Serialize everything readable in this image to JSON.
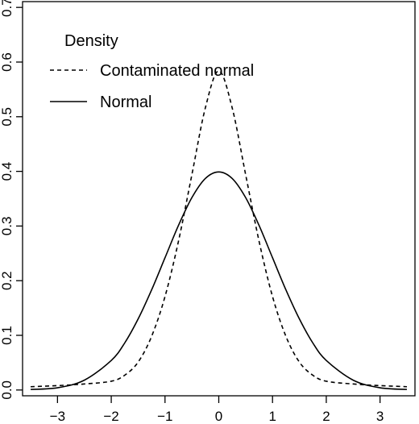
{
  "chart_data": {
    "type": "line",
    "title": "",
    "xlabel": "",
    "ylabel": "",
    "xlim": [
      -3.5,
      3.5
    ],
    "ylim": [
      0.0,
      0.7
    ],
    "x_ticks": [
      -3,
      -2,
      -1,
      0,
      1,
      2,
      3
    ],
    "x_tick_labels": [
      "−3",
      "−2",
      "−1",
      "0",
      "1",
      "2",
      "3"
    ],
    "y_ticks": [
      0.0,
      0.1,
      0.2,
      0.3,
      0.4,
      0.5,
      0.6,
      0.7
    ],
    "y_tick_labels": [
      "0.0",
      "0.1",
      "0.2",
      "0.3",
      "0.4",
      "0.5",
      "0.6",
      "0.7"
    ],
    "grid": false,
    "legend": {
      "title": "Density",
      "placement": "top-left",
      "entries": [
        {
          "label": "Contaminated normal",
          "line_style": "dashed"
        },
        {
          "label": "Normal",
          "line_style": "solid"
        }
      ]
    },
    "series": [
      {
        "name": "Contaminated normal",
        "line_style": "dashed",
        "color": "#000000",
        "x": [
          -3.5,
          -3.0,
          -2.5,
          -2.0,
          -1.75,
          -1.5,
          -1.25,
          -1.0,
          -0.75,
          -0.5,
          -0.25,
          0.0,
          0.25,
          0.5,
          0.75,
          1.0,
          1.25,
          1.5,
          1.75,
          2.0,
          2.5,
          3.0,
          3.5
        ],
        "values": [
          0.006,
          0.008,
          0.011,
          0.016,
          0.027,
          0.051,
          0.098,
          0.171,
          0.272,
          0.394,
          0.516,
          0.584,
          0.516,
          0.394,
          0.272,
          0.171,
          0.098,
          0.051,
          0.027,
          0.016,
          0.011,
          0.008,
          0.006
        ]
      },
      {
        "name": "Normal",
        "line_style": "solid",
        "color": "#000000",
        "x": [
          -3.5,
          -3.0,
          -2.5,
          -2.0,
          -1.75,
          -1.5,
          -1.25,
          -1.0,
          -0.75,
          -0.5,
          -0.25,
          0.0,
          0.25,
          0.5,
          0.75,
          1.0,
          1.25,
          1.5,
          1.75,
          2.0,
          2.5,
          3.0,
          3.5
        ],
        "values": [
          0.001,
          0.004,
          0.018,
          0.054,
          0.086,
          0.13,
          0.183,
          0.242,
          0.301,
          0.352,
          0.387,
          0.399,
          0.387,
          0.352,
          0.301,
          0.242,
          0.183,
          0.13,
          0.086,
          0.054,
          0.018,
          0.004,
          0.001
        ]
      }
    ]
  }
}
